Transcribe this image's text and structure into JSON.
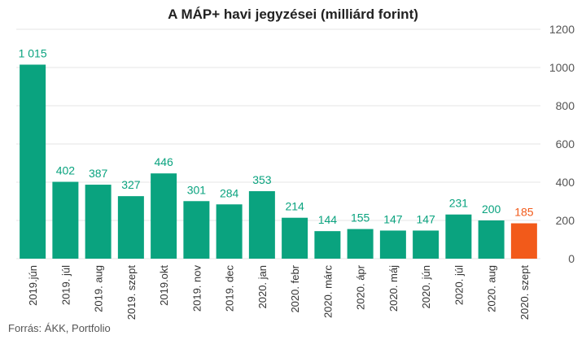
{
  "title": {
    "bold": "A MÁP+ havi jegyzései",
    "normal": "(milliárd forint)"
  },
  "source": "Forrás: ÁKK, Portfolio",
  "colors": {
    "bar": "#0aa37f",
    "highlight": "#f25a1a",
    "grid": "#e6e6e6",
    "axis_text": "#555555"
  },
  "chart_data": {
    "type": "bar",
    "title": "A MÁP+ havi jegyzései (milliárd forint)",
    "categories": [
      "2019.jún",
      "2019. júl",
      "2019. aug",
      "2019. szept",
      "2019.okt",
      "2019. nov",
      "2019. dec",
      "2020. jan",
      "2020. febr",
      "2020. márc",
      "2020. ápr",
      "2020. máj",
      "2020. jún",
      "2020. júl",
      "2020. aug",
      "2020. szept"
    ],
    "values": [
      1015,
      402,
      387,
      327,
      446,
      301,
      284,
      353,
      214,
      144,
      155,
      147,
      147,
      231,
      200,
      185
    ],
    "value_labels": [
      "1 015",
      "402",
      "387",
      "327",
      "446",
      "301",
      "284",
      "353",
      "214",
      "144",
      "155",
      "147",
      "147",
      "231",
      "200",
      "185"
    ],
    "highlight_index": 15,
    "ylim": [
      0,
      1200
    ],
    "yticks": [
      0,
      200,
      400,
      600,
      800,
      1000,
      1200
    ],
    "y_axis_position": "right",
    "grid": true
  }
}
